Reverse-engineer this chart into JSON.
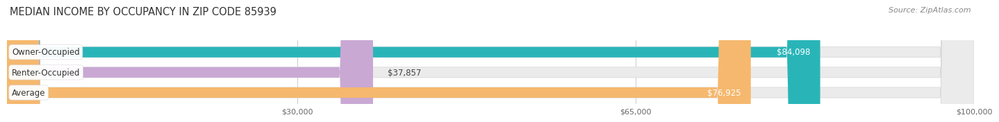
{
  "title": "MEDIAN INCOME BY OCCUPANCY IN ZIP CODE 85939",
  "source": "Source: ZipAtlas.com",
  "categories": [
    "Owner-Occupied",
    "Renter-Occupied",
    "Average"
  ],
  "values": [
    84098,
    37857,
    76925
  ],
  "labels": [
    "$84,098",
    "$37,857",
    "$76,925"
  ],
  "label_inside": [
    true,
    false,
    true
  ],
  "bar_colors": [
    "#29b5b8",
    "#c9a8d4",
    "#f5b86e"
  ],
  "bar_bg_color": "#ebebeb",
  "xmin": 0,
  "xmax": 100000,
  "xticks": [
    30000,
    65000,
    100000
  ],
  "xtick_labels": [
    "$30,000",
    "$65,000",
    "$100,000"
  ],
  "title_fontsize": 10.5,
  "source_fontsize": 8,
  "bar_height": 0.52,
  "bar_label_fontsize": 8.5,
  "category_fontsize": 8.5,
  "rounding_size": 3500
}
